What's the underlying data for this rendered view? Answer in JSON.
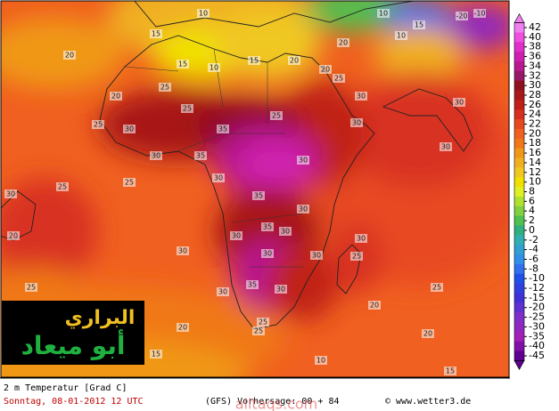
{
  "map": {
    "labels": [
      "15",
      "20",
      "15",
      "10",
      "15",
      "20",
      "20",
      "25",
      "25",
      "20",
      "25",
      "30",
      "30",
      "25",
      "35",
      "30",
      "25",
      "30",
      "35",
      "30",
      "30",
      "25",
      "30",
      "35",
      "30",
      "30",
      "35",
      "30",
      "30",
      "30",
      "25",
      "20",
      "30",
      "30",
      "25",
      "30",
      "35",
      "30",
      "30",
      "25",
      "25",
      "25",
      "20",
      "20",
      "20",
      "20",
      "15",
      "10",
      "15",
      "10",
      "10",
      "-10",
      "-20",
      "10",
      "15",
      "20",
      "25",
      "30"
    ]
  },
  "colorbar": {
    "ticks": [
      "42",
      "40",
      "38",
      "36",
      "34",
      "32",
      "30",
      "28",
      "26",
      "24",
      "22",
      "20",
      "18",
      "16",
      "14",
      "12",
      "10",
      "8",
      "6",
      "4",
      "2",
      "0",
      "-2",
      "-4",
      "-6",
      "-8",
      "-10",
      "-12",
      "-15",
      "-20",
      "-25",
      "-30",
      "-35",
      "-40",
      "-45"
    ],
    "colors": [
      "#f080f0",
      "#f050e0",
      "#e030c8",
      "#d020b0",
      "#b81890",
      "#981868",
      "#901020",
      "#a81818",
      "#c02018",
      "#d83020",
      "#e84820",
      "#f06020",
      "#f07818",
      "#f09818",
      "#f0b020",
      "#f0c820",
      "#f0e000",
      "#e0f020",
      "#b0e030",
      "#80d040",
      "#50c050",
      "#30b080",
      "#30b0b0",
      "#30a0d0",
      "#3090e8",
      "#3070f0",
      "#2050e8",
      "#3040e0",
      "#4030d8",
      "#6030d0",
      "#8030c8",
      "#9028c0",
      "#a020b8",
      "#8010a8",
      "#600090"
    ]
  },
  "footer": {
    "title": "2 m Temperatur [Grad C]",
    "date": "Sonntag, 08-01-2012  12 UTC",
    "run": "(GFS)  Vorhersage: 00 + 84",
    "source": "© www.wetter3.de",
    "watermark": "alltaqs.com"
  },
  "logo": {
    "line1": "البراري",
    "line2": "أبو ميعاد"
  }
}
